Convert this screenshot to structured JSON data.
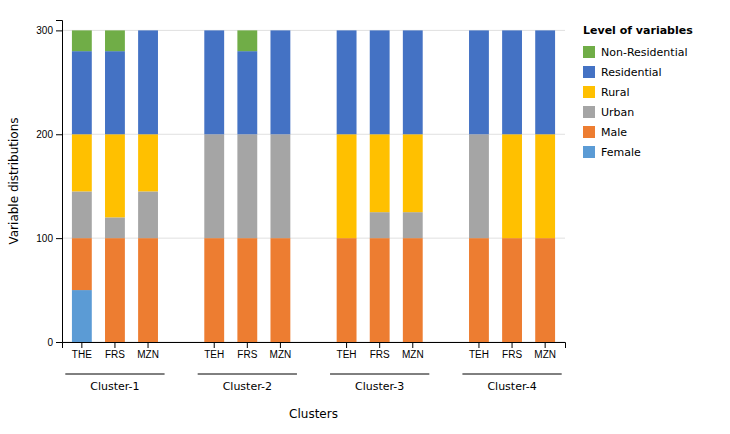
{
  "chart_data": {
    "type": "bar",
    "stacked": true,
    "categories": [
      "THE",
      "FRS",
      "MZN",
      "TEH",
      "FRS",
      "MZN",
      "TEH",
      "FRS",
      "MZN",
      "TEH",
      "FRS",
      "MZN"
    ],
    "annotations": [
      "Cluster-1",
      "Cluster-2",
      "Cluster-3",
      "Cluster-4"
    ],
    "series": [
      {
        "name": "Female",
        "color": "#5B9BD5",
        "values": [
          50,
          0,
          0,
          0,
          0,
          0,
          0,
          0,
          0,
          0,
          0,
          0
        ]
      },
      {
        "name": "Male",
        "color": "#ED7D31",
        "values": [
          50,
          100,
          100,
          100,
          100,
          100,
          100,
          100,
          100,
          100,
          100,
          100
        ]
      },
      {
        "name": "Urban",
        "color": "#A5A5A5",
        "values": [
          45,
          20,
          45,
          100,
          100,
          100,
          0,
          25,
          25,
          100,
          0,
          0
        ]
      },
      {
        "name": "Rural",
        "color": "#FFC000",
        "values": [
          55,
          80,
          55,
          0,
          0,
          0,
          100,
          75,
          75,
          0,
          100,
          100
        ]
      },
      {
        "name": "Residential",
        "color": "#4472C4",
        "values": [
          80,
          80,
          100,
          100,
          80,
          100,
          100,
          100,
          100,
          100,
          100,
          100
        ]
      },
      {
        "name": "Non-Residential",
        "color": "#70AD47",
        "values": [
          20,
          20,
          0,
          0,
          20,
          0,
          0,
          0,
          0,
          0,
          0,
          0
        ]
      }
    ],
    "xlabel": "Clusters",
    "ylabel": "Variable distributions",
    "legend_title": "Level of variables",
    "legend": "right",
    "ylim": [
      0,
      310
    ],
    "yticks": [
      0,
      100,
      200,
      300
    ],
    "grid": true
  }
}
